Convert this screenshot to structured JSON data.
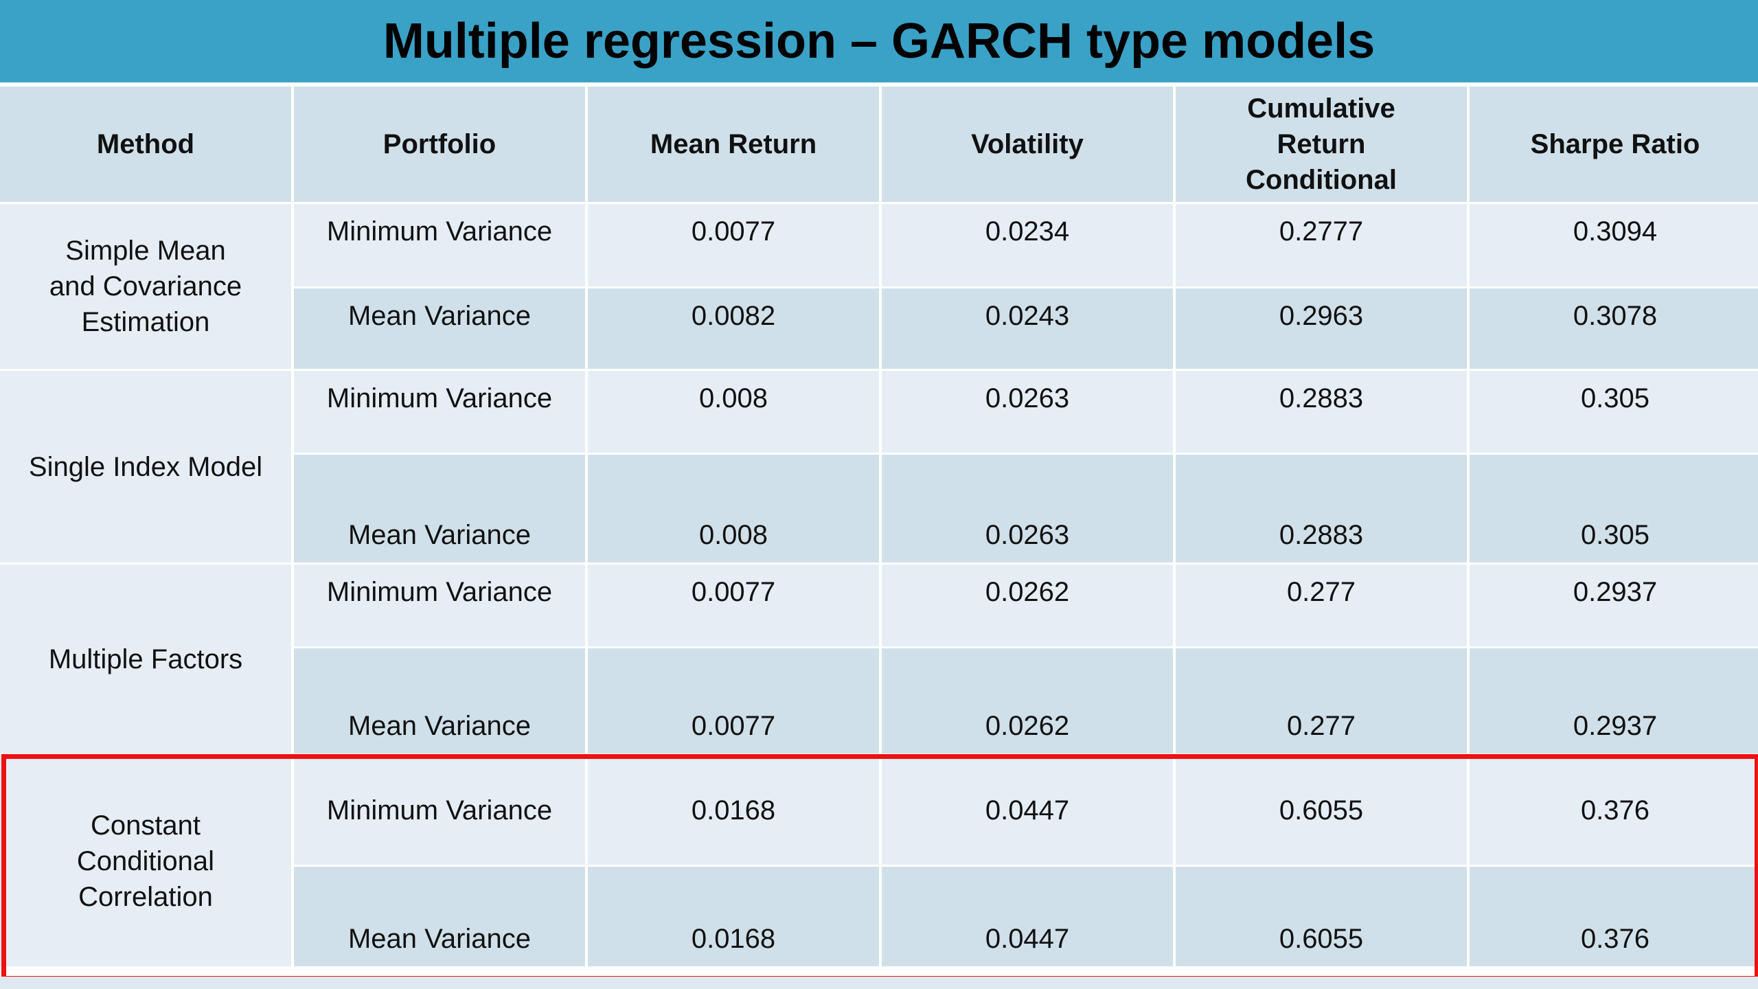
{
  "title": "Multiple regression – GARCH type models",
  "headers": {
    "method": "Method",
    "portfolio": "Portfolio",
    "mean_return": "Mean Return",
    "volatility": "Volatility",
    "cumulative_line1": "Cumulative",
    "cumulative_line2": "Return",
    "cumulative_line3": "Conditional",
    "sharpe": "Sharpe Ratio"
  },
  "groups": [
    {
      "method_lines": [
        "Simple Mean",
        "and Covariance",
        "Estimation"
      ],
      "rows": [
        {
          "portfolio": "Minimum Variance",
          "mean_return": "0.0077",
          "volatility": "0.0234",
          "cumulative": "0.2777",
          "sharpe": "0.3094"
        },
        {
          "portfolio": "Mean Variance",
          "mean_return": "0.0082",
          "volatility": "0.0243",
          "cumulative": "0.2963",
          "sharpe": "0.3078"
        }
      ]
    },
    {
      "method_lines": [
        "Single Index Model"
      ],
      "rows": [
        {
          "portfolio": "Minimum Variance",
          "mean_return": "0.008",
          "volatility": "0.0263",
          "cumulative": "0.2883",
          "sharpe": "0.305"
        },
        {
          "portfolio": "Mean Variance",
          "mean_return": "0.008",
          "volatility": "0.0263",
          "cumulative": "0.2883",
          "sharpe": "0.305"
        }
      ]
    },
    {
      "method_lines": [
        "Multiple Factors"
      ],
      "rows": [
        {
          "portfolio": "Minimum Variance",
          "mean_return": "0.0077",
          "volatility": "0.0262",
          "cumulative": "0.277",
          "sharpe": "0.2937"
        },
        {
          "portfolio": "Mean Variance",
          "mean_return": "0.0077",
          "volatility": "0.0262",
          "cumulative": "0.277",
          "sharpe": "0.2937"
        }
      ]
    },
    {
      "method_lines": [
        "Constant",
        "Conditional",
        "Correlation"
      ],
      "rows": [
        {
          "portfolio": "Minimum Variance",
          "mean_return": "0.0168",
          "volatility": "0.0447",
          "cumulative": "0.6055",
          "sharpe": "0.376"
        },
        {
          "portfolio": "Mean Variance",
          "mean_return": "0.0168",
          "volatility": "0.0447",
          "cumulative": "0.6055",
          "sharpe": "0.376"
        }
      ]
    }
  ],
  "colors": {
    "title_bar": "#3aa2c7",
    "header_bg": "#cfe0ea",
    "light_row": "#e6edf5",
    "dark_row": "#cfe0ea",
    "highlight": "#ee1111"
  }
}
